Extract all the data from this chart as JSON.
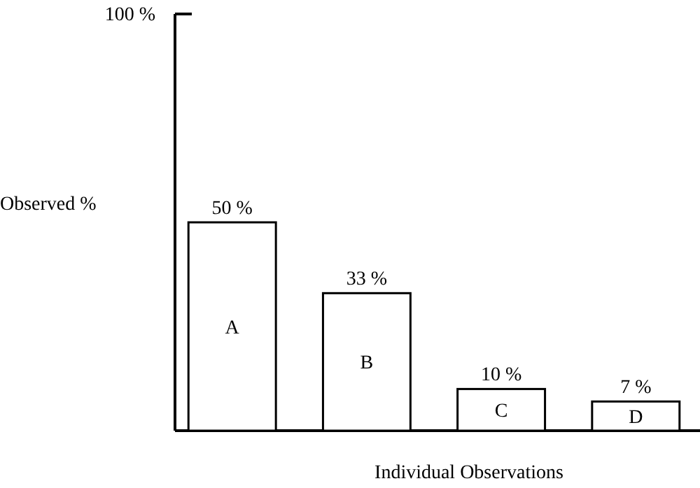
{
  "chart_data": {
    "type": "bar",
    "categories": [
      "A",
      "B",
      "C",
      "D"
    ],
    "values": [
      50,
      33,
      10,
      7
    ],
    "value_labels": [
      "50 %",
      "33 %",
      "10 %",
      "7 %"
    ],
    "color": "#ffffff",
    "ylim": [
      0,
      100
    ],
    "yticks": [
      {
        "value": 100,
        "label": "100 %"
      }
    ],
    "ylabel": "Observed %",
    "xlabel": "Individual Observations",
    "grid": false
  }
}
